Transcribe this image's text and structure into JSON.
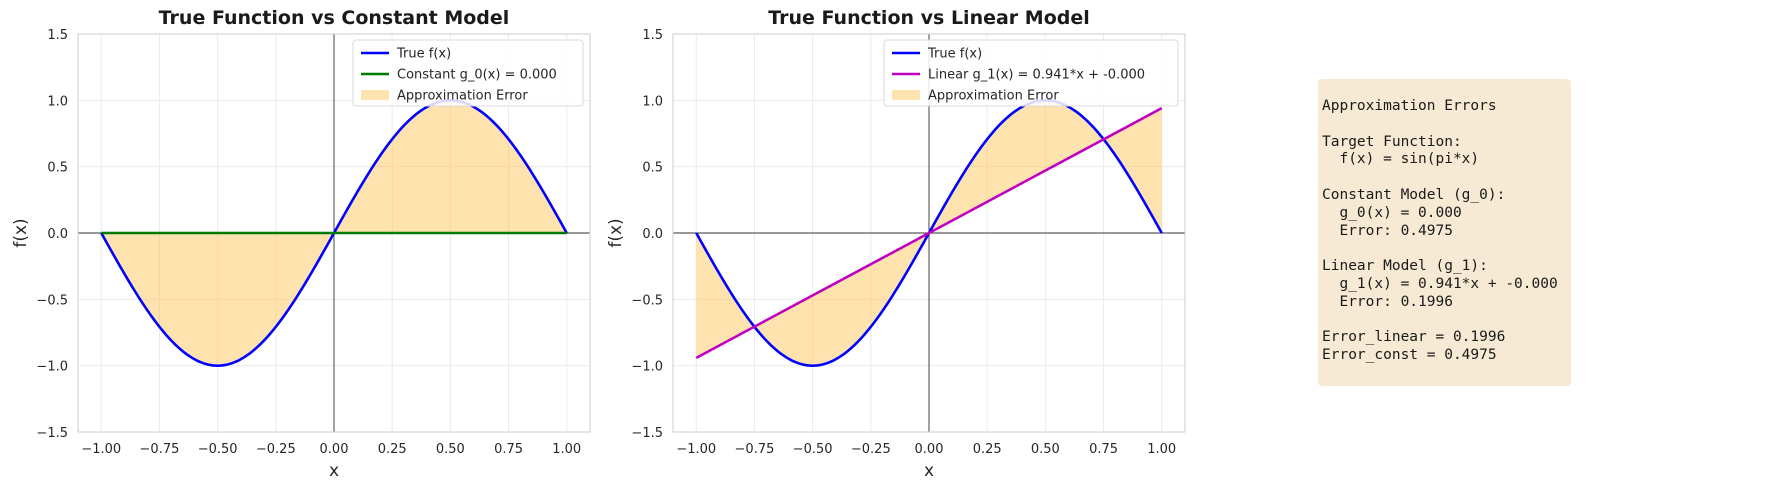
{
  "chart_data": [
    {
      "type": "line",
      "title": "True Function vs Constant Model",
      "xlabel": "x",
      "ylabel": "f(x)",
      "xlim": [
        -1.1,
        1.1
      ],
      "ylim": [
        -1.5,
        1.5
      ],
      "xticks": [
        -1.0,
        -0.75,
        -0.5,
        -0.25,
        0.0,
        0.25,
        0.5,
        0.75,
        1.0
      ],
      "xtick_labels": [
        "−1.00",
        "−0.75",
        "−0.50",
        "−0.25",
        "0.00",
        "0.25",
        "0.50",
        "0.75",
        "1.00"
      ],
      "yticks": [
        -1.5,
        -1.0,
        -0.5,
        0.0,
        0.5,
        1.0,
        1.5
      ],
      "ytick_labels": [
        "−1.5",
        "−1.0",
        "−0.5",
        "0.0",
        "0.5",
        "1.0",
        "1.5"
      ],
      "grid": true,
      "legend_position": "top-right",
      "series": [
        {
          "name": "True f(x)",
          "kind": "line",
          "function": "sin(pi*x)",
          "x_range": [
            -1.0,
            1.0
          ],
          "color": "#0000ff"
        },
        {
          "name": "Constant g_0(x) = 0.000",
          "kind": "line",
          "slope": 0.0,
          "intercept": 0.0,
          "x_range": [
            -1.0,
            1.0
          ],
          "color": "#007a00"
        },
        {
          "name": "Approximation Error",
          "kind": "fill_between",
          "color": "#ffc04d"
        }
      ]
    },
    {
      "type": "line",
      "title": "True Function vs Linear Model",
      "xlabel": "x",
      "ylabel": "f(x)",
      "xlim": [
        -1.1,
        1.1
      ],
      "ylim": [
        -1.5,
        1.5
      ],
      "xticks": [
        -1.0,
        -0.75,
        -0.5,
        -0.25,
        0.0,
        0.25,
        0.5,
        0.75,
        1.0
      ],
      "xtick_labels": [
        "−1.00",
        "−0.75",
        "−0.50",
        "−0.25",
        "0.00",
        "0.25",
        "0.50",
        "0.75",
        "1.00"
      ],
      "yticks": [
        -1.5,
        -1.0,
        -0.5,
        0.0,
        0.5,
        1.0,
        1.5
      ],
      "ytick_labels": [
        "−1.5",
        "−1.0",
        "−0.5",
        "0.0",
        "0.5",
        "1.0",
        "1.5"
      ],
      "grid": true,
      "legend_position": "top-right",
      "series": [
        {
          "name": "True f(x)",
          "kind": "line",
          "function": "sin(pi*x)",
          "x_range": [
            -1.0,
            1.0
          ],
          "color": "#0000ff"
        },
        {
          "name": "Linear g_1(x) = 0.941*x + -0.000",
          "kind": "line",
          "slope": 0.941,
          "intercept": 0.0,
          "x_range": [
            -1.0,
            1.0
          ],
          "color": "#bf00bf"
        },
        {
          "name": "Approximation Error",
          "kind": "fill_between",
          "color": "#ffc04d"
        }
      ]
    }
  ],
  "summary_panel": {
    "lines": [
      "Approximation Errors",
      "",
      "Target Function:",
      "  f(x) = sin(pi*x)",
      "",
      "Constant Model (g_0):",
      "  g_0(x) = 0.000",
      "  Error: 0.4975",
      "",
      "Linear Model (g_1):",
      "  g_1(x) = 0.941*x + -0.000",
      "  Error: 0.1996",
      "",
      "Error_linear = 0.1996",
      "Error_const = 0.4975"
    ],
    "background": "#f5e6cc"
  }
}
